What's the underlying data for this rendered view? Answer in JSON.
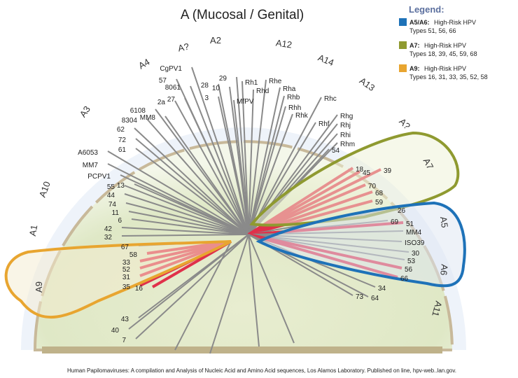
{
  "title": "A (Mucosal / Genital)",
  "clades": [
    "A10",
    "A3",
    "A4",
    "A?",
    "A2",
    "A12",
    "A14",
    "A13",
    "A?",
    "A7",
    "A5",
    "A6",
    "A11",
    "A1",
    "A9"
  ],
  "leaves": [
    "57",
    "8061",
    "CgPV1",
    "28",
    "10",
    "29",
    "3",
    "2a",
    "27",
    "6108",
    "MM8",
    "8304",
    "62",
    "72",
    "61",
    "A6053",
    "MM7",
    "PCPV1",
    "55",
    "13",
    "44",
    "74",
    "11",
    "6",
    "42",
    "32",
    "67",
    "58",
    "33",
    "52",
    "31",
    "35",
    "16",
    "43",
    "40",
    "7",
    "Rh1",
    "Rhd",
    "Rhe",
    "Rha",
    "Rhb",
    "MfPV",
    "Rhh",
    "Rhk",
    "Rhf",
    "Rhc",
    "Rhg",
    "Rhj",
    "Rhi",
    "Rhm",
    "54",
    "18",
    "45",
    "39",
    "70",
    "68",
    "59",
    "26",
    "69",
    "51",
    "MM4",
    "ISO39",
    "30",
    "53",
    "56",
    "66",
    "34",
    "73",
    "64"
  ],
  "legend": {
    "title": "Legend:",
    "items": [
      {
        "clade": "A5/A6:",
        "risk": "High-Risk HPV",
        "types": "Types 51, 56, 66"
      },
      {
        "clade": "A7:",
        "risk": "High-Risk HPV",
        "types": "Types 18, 39, 45, 59, 68"
      },
      {
        "clade": "A9:",
        "risk": "High-Risk HPV",
        "types": "Types 16, 31, 33, 35, 52, 58"
      }
    ]
  },
  "caption": "Human Papilomaviruses: A compilation and Analysis of Nucleic Acid and Amino Acid sequences, Los Alamos Laboratory. Published on line, hpv-web..lan.gov."
}
